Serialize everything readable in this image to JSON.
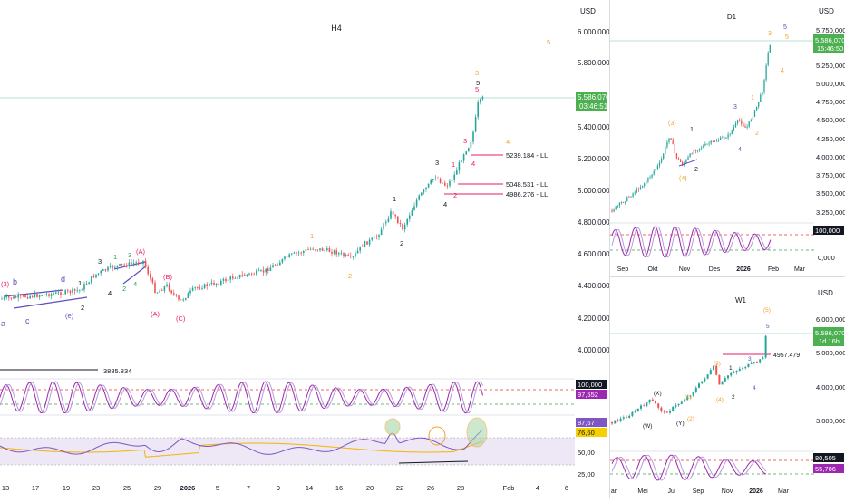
{
  "theme": {
    "up": "#26a69a",
    "down": "#ef5350",
    "wave_black": "#131722",
    "wave_orange": "#f0a22e",
    "wave_red": "#e91e63",
    "wave_purple": "#5b4fbf",
    "wave_green": "#2e9e48",
    "osc_purple": "#9c27b0",
    "osc_lavender": "#b79bd8",
    "price_badge": "#4caf50",
    "ll_line": "#e91e63",
    "trend_line": "#5b4fbf",
    "rsi_fill": "#ede7f6",
    "rsi_ma": "#f5b400",
    "circle": "#f0a22e",
    "dash_red": "#e53935",
    "dash_green": "#43a047",
    "grid": "#f0f3fa"
  },
  "h4": {
    "title": "H4",
    "currency": "USD",
    "price_axis": [
      "6.000,000",
      "5.800,000",
      "5.400,000",
      "5.200,000",
      "5.000,000",
      "4.800,000",
      "4.600,000",
      "4.400,000",
      "4.200,000",
      "4.000,000"
    ],
    "last_price": "5.586,070",
    "countdown": "03:46:51",
    "x_axis": [
      "13",
      "17",
      "19",
      "23",
      "25",
      "29",
      "2026",
      "5",
      "7",
      "9",
      "14",
      "16",
      "20",
      "22",
      "26",
      "28",
      "Feb",
      "4",
      "6"
    ],
    "levels": [
      {
        "label": "5239.184 - LL"
      },
      {
        "label": "5048.531 - LL"
      },
      {
        "label": "4986.276 - LL"
      },
      {
        "label": "3885.834"
      }
    ],
    "waves": {
      "w_3r": "(3)",
      "w_a": "a",
      "w_b": "b",
      "w_c": "c",
      "w_d": "d",
      "w_e": "(e)",
      "w_1": "1",
      "w_2": "2",
      "w_3a": "3",
      "w_1g": "1",
      "w_3g": "3",
      "w_Ar": "(A)",
      "w_4a": "4",
      "w_2g": "2",
      "w_4g": "4",
      "w_Br": "(B)",
      "w_A2": "(A)",
      "w_C": "(C)",
      "w_1o": "1",
      "w_2o": "2",
      "w_1b": "1",
      "w_2b": "2",
      "w_3b": "3",
      "w_4b": "4",
      "w_2r": "2",
      "w_1r": "1",
      "w_3r2": "3",
      "w_4r": "4",
      "w_5r": "5",
      "w_5b": "5",
      "w_3o": "3",
      "w_4o": "4",
      "w_5o": "5"
    },
    "stoch_labels": [
      "100,000",
      "97,552"
    ],
    "rsi_labels": [
      "87,67",
      "76,60",
      "50,00",
      "25,00"
    ]
  },
  "d1": {
    "title": "D1",
    "currency": "USD",
    "price_axis": [
      "5.750,000",
      "5.250,000",
      "5.000,000",
      "4.750,000",
      "4.500,000",
      "4.250,000",
      "4.000,000",
      "3.750,000",
      "3.500,000",
      "3.250,000"
    ],
    "last_price": "5.586,070",
    "countdown": "15:46:50",
    "x_axis": [
      "Sep",
      "Okt",
      "Nov",
      "Des",
      "2026",
      "Feb",
      "Mar"
    ],
    "waves": {
      "w3o": "(3)",
      "w4o": "(4)",
      "w1": "1",
      "w2": "2",
      "w3": "3",
      "w4": "4",
      "w1o": "1",
      "w2o": "2",
      "w3t": "3",
      "w4t": "4",
      "w5": "5",
      "w5o": "5"
    },
    "stoch_labels": [
      "100,000",
      "0,000"
    ]
  },
  "w1": {
    "title": "W1",
    "currency": "USD",
    "price_axis": [
      "6.000,000",
      "5.000,000",
      "4.000,000",
      "3.000,000"
    ],
    "last_price": "5.586,070",
    "countdown": "1d 16h",
    "level": "4957.479",
    "x_axis": [
      "ar",
      "Mei",
      "Jul",
      "Sep",
      "Nov",
      "2026",
      "Mar"
    ],
    "waves": {
      "wX": "(X)",
      "wW": "(W)",
      "wY": "(Y)",
      "w1p": "(1)",
      "w2p": "(2)",
      "w3p": "(3)",
      "w4p": "(4)",
      "w5p": "(5)",
      "w1": "1",
      "w2": "2",
      "w3": "3",
      "w4": "4",
      "w5": "5"
    },
    "stoch_labels": [
      "80,505",
      "55,706"
    ]
  }
}
